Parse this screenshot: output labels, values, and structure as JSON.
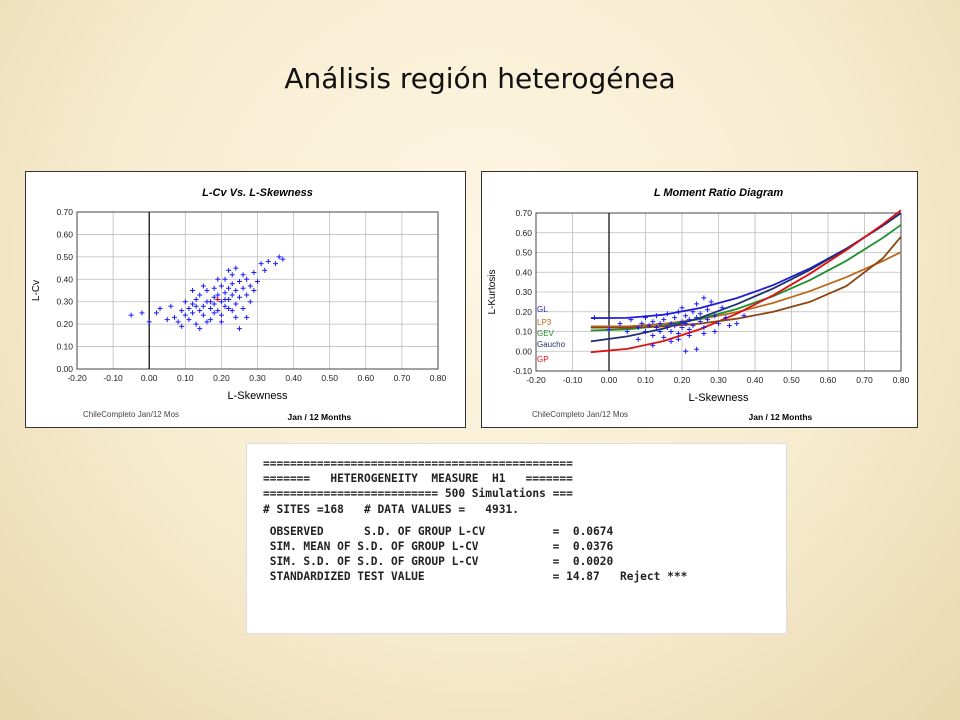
{
  "slide": {
    "title": "Análisis región heterogénea"
  },
  "chart_data": [
    {
      "type": "scatter",
      "title": "L-Cv Vs. L-Skewness",
      "xlabel": "L-Skewness",
      "ylabel": "L-Cv",
      "xlim": [
        -0.2,
        0.8
      ],
      "ylim": [
        0.0,
        0.7
      ],
      "x_ticks": [
        "-0.20",
        "-0.10",
        "0.00",
        "0.10",
        "0.20",
        "0.30",
        "0.40",
        "0.50",
        "0.60",
        "0.70",
        "0.80"
      ],
      "y_ticks": [
        "0.00",
        "0.10",
        "0.20",
        "0.30",
        "0.40",
        "0.50",
        "0.60",
        "0.70"
      ],
      "grid": true,
      "footer_left": "ChileCompleto Jan/12 Mos",
      "footer_right": "Jan / 12 Months",
      "marker_color": "#1a1aff",
      "regional_mean": {
        "x": 0.19,
        "y": 0.31,
        "color": "#e00000"
      },
      "points": [
        [
          -0.05,
          0.24
        ],
        [
          -0.02,
          0.25
        ],
        [
          0.0,
          0.21
        ],
        [
          0.02,
          0.25
        ],
        [
          0.03,
          0.27
        ],
        [
          0.05,
          0.22
        ],
        [
          0.06,
          0.28
        ],
        [
          0.07,
          0.23
        ],
        [
          0.08,
          0.21
        ],
        [
          0.09,
          0.26
        ],
        [
          0.1,
          0.24
        ],
        [
          0.1,
          0.3
        ],
        [
          0.11,
          0.27
        ],
        [
          0.11,
          0.22
        ],
        [
          0.12,
          0.25
        ],
        [
          0.12,
          0.29
        ],
        [
          0.13,
          0.31
        ],
        [
          0.13,
          0.2
        ],
        [
          0.14,
          0.26
        ],
        [
          0.14,
          0.33
        ],
        [
          0.15,
          0.28
        ],
        [
          0.15,
          0.24
        ],
        [
          0.16,
          0.3
        ],
        [
          0.16,
          0.35
        ],
        [
          0.17,
          0.27
        ],
        [
          0.17,
          0.22
        ],
        [
          0.18,
          0.32
        ],
        [
          0.18,
          0.29
        ],
        [
          0.18,
          0.36
        ],
        [
          0.19,
          0.26
        ],
        [
          0.19,
          0.33
        ],
        [
          0.2,
          0.3
        ],
        [
          0.2,
          0.37
        ],
        [
          0.2,
          0.24
        ],
        [
          0.21,
          0.34
        ],
        [
          0.21,
          0.28
        ],
        [
          0.21,
          0.4
        ],
        [
          0.22,
          0.31
        ],
        [
          0.22,
          0.36
        ],
        [
          0.22,
          0.27
        ],
        [
          0.23,
          0.38
        ],
        [
          0.23,
          0.33
        ],
        [
          0.23,
          0.42
        ],
        [
          0.24,
          0.29
        ],
        [
          0.24,
          0.35
        ],
        [
          0.24,
          0.45
        ],
        [
          0.25,
          0.32
        ],
        [
          0.25,
          0.39
        ],
        [
          0.25,
          0.18
        ],
        [
          0.26,
          0.36
        ],
        [
          0.26,
          0.42
        ],
        [
          0.27,
          0.33
        ],
        [
          0.27,
          0.4
        ],
        [
          0.28,
          0.37
        ],
        [
          0.28,
          0.3
        ],
        [
          0.29,
          0.43
        ],
        [
          0.3,
          0.39
        ],
        [
          0.31,
          0.47
        ],
        [
          0.32,
          0.44
        ],
        [
          0.33,
          0.48
        ],
        [
          0.35,
          0.47
        ],
        [
          0.36,
          0.5
        ],
        [
          0.37,
          0.49
        ],
        [
          0.27,
          0.23
        ],
        [
          0.09,
          0.19
        ],
        [
          0.16,
          0.21
        ],
        [
          0.2,
          0.21
        ],
        [
          0.24,
          0.23
        ],
        [
          0.14,
          0.18
        ],
        [
          0.18,
          0.25
        ],
        [
          0.12,
          0.35
        ],
        [
          0.19,
          0.4
        ],
        [
          0.22,
          0.44
        ],
        [
          0.15,
          0.37
        ],
        [
          0.26,
          0.27
        ],
        [
          0.29,
          0.35
        ],
        [
          0.23,
          0.26
        ],
        [
          0.17,
          0.3
        ],
        [
          0.21,
          0.31
        ],
        [
          0.13,
          0.28
        ]
      ]
    },
    {
      "type": "line",
      "title": "L Moment Ratio Diagram",
      "xlabel": "L-Skewness",
      "ylabel": "L-Kurtosis",
      "xlim": [
        -0.2,
        0.8
      ],
      "ylim": [
        -0.1,
        0.7
      ],
      "x_ticks": [
        "-0.20",
        "-0.10",
        "0.00",
        "0.10",
        "0.20",
        "0.30",
        "0.40",
        "0.50",
        "0.60",
        "0.70",
        "0.80"
      ],
      "y_ticks": [
        "-0.10",
        "0.00",
        "0.10",
        "0.20",
        "0.30",
        "0.40",
        "0.50",
        "0.60",
        "0.70"
      ],
      "grid": true,
      "footer_left": "ChileCompleto Jan/12 Mos",
      "footer_right": "Jan / 12 Months",
      "series": [
        {
          "name": "GL",
          "color": "#1f1fd0",
          "x": [
            -0.05,
            0.05,
            0.15,
            0.25,
            0.35,
            0.45,
            0.55,
            0.65,
            0.75,
            0.8
          ],
          "y": [
            0.168,
            0.169,
            0.185,
            0.219,
            0.269,
            0.335,
            0.419,
            0.519,
            0.636,
            0.7
          ]
        },
        {
          "name": "LP3",
          "color": "#b86a1c",
          "x": [
            -0.05,
            0.05,
            0.15,
            0.25,
            0.35,
            0.45,
            0.55,
            0.65,
            0.75,
            0.8
          ],
          "y": [
            0.126,
            0.126,
            0.139,
            0.163,
            0.198,
            0.245,
            0.304,
            0.375,
            0.457,
            0.502
          ]
        },
        {
          "name": "GEV",
          "color": "#1f8f2f",
          "x": [
            -0.05,
            0.05,
            0.15,
            0.25,
            0.35,
            0.45,
            0.55,
            0.65,
            0.75,
            0.8
          ],
          "y": [
            0.105,
            0.111,
            0.13,
            0.165,
            0.214,
            0.279,
            0.36,
            0.458,
            0.574,
            0.64
          ]
        },
        {
          "name": "Gaucho",
          "color": "#1f2f6f",
          "x": [
            -0.05,
            0.05,
            0.15,
            0.25,
            0.35,
            0.45,
            0.55,
            0.65,
            0.75,
            0.8
          ],
          "y": [
            0.05,
            0.075,
            0.115,
            0.17,
            0.238,
            0.318,
            0.412,
            0.518,
            0.636,
            0.7
          ]
        },
        {
          "name": "GP",
          "color": "#e01010",
          "x": [
            -0.05,
            0.05,
            0.15,
            0.25,
            0.35,
            0.45,
            0.55,
            0.65,
            0.75,
            0.8
          ],
          "y": [
            -0.005,
            0.012,
            0.052,
            0.112,
            0.19,
            0.284,
            0.392,
            0.512,
            0.643,
            0.714
          ]
        },
        {
          "name": "",
          "color": "#8b4513",
          "x": [
            -0.05,
            0.05,
            0.15,
            0.25,
            0.35,
            0.45,
            0.55,
            0.65,
            0.75,
            0.8
          ],
          "y": [
            0.12,
            0.12,
            0.126,
            0.14,
            0.165,
            0.2,
            0.25,
            0.33,
            0.47,
            0.58
          ]
        }
      ],
      "sites": [
        [
          -0.04,
          0.17
        ],
        [
          0.0,
          0.11
        ],
        [
          0.03,
          0.14
        ],
        [
          0.05,
          0.1
        ],
        [
          0.06,
          0.16
        ],
        [
          0.08,
          0.12
        ],
        [
          0.09,
          0.14
        ],
        [
          0.1,
          0.1
        ],
        [
          0.1,
          0.17
        ],
        [
          0.11,
          0.13
        ],
        [
          0.12,
          0.08
        ],
        [
          0.12,
          0.15
        ],
        [
          0.13,
          0.12
        ],
        [
          0.13,
          0.18
        ],
        [
          0.14,
          0.1
        ],
        [
          0.14,
          0.14
        ],
        [
          0.15,
          0.16
        ],
        [
          0.15,
          0.07
        ],
        [
          0.16,
          0.12
        ],
        [
          0.16,
          0.19
        ],
        [
          0.17,
          0.14
        ],
        [
          0.17,
          0.1
        ],
        [
          0.18,
          0.17
        ],
        [
          0.18,
          0.13
        ],
        [
          0.19,
          0.2
        ],
        [
          0.19,
          0.09
        ],
        [
          0.2,
          0.15
        ],
        [
          0.2,
          0.12
        ],
        [
          0.2,
          0.22
        ],
        [
          0.21,
          0.14
        ],
        [
          0.21,
          0.18
        ],
        [
          0.22,
          0.11
        ],
        [
          0.22,
          0.16
        ],
        [
          0.23,
          0.2
        ],
        [
          0.23,
          0.13
        ],
        [
          0.24,
          0.17
        ],
        [
          0.24,
          0.24
        ],
        [
          0.25,
          0.15
        ],
        [
          0.25,
          0.19
        ],
        [
          0.26,
          0.27
        ],
        [
          0.26,
          0.12
        ],
        [
          0.27,
          0.21
        ],
        [
          0.27,
          0.16
        ],
        [
          0.28,
          0.25
        ],
        [
          0.29,
          0.18
        ],
        [
          0.3,
          0.14
        ],
        [
          0.31,
          0.22
        ],
        [
          0.32,
          0.17
        ],
        [
          0.33,
          0.13
        ],
        [
          0.35,
          0.14
        ],
        [
          0.37,
          0.18
        ],
        [
          0.21,
          0.0
        ],
        [
          0.24,
          0.01
        ],
        [
          0.12,
          0.03
        ],
        [
          0.17,
          0.05
        ],
        [
          0.08,
          0.06
        ],
        [
          0.26,
          0.09
        ],
        [
          0.19,
          0.06
        ],
        [
          0.29,
          0.1
        ],
        [
          0.22,
          0.08
        ]
      ]
    }
  ],
  "console": {
    "line1": "==============================================",
    "line2": "=======   HETEROGENEITY  MEASURE  H1   =======",
    "line3": "========================== 500 Simulations ===",
    "line4": "# SITES =168   # DATA VALUES =   4931.",
    "line5": " OBSERVED      S.D. OF GROUP L-CV          =  0.0674",
    "line6": " SIM. MEAN OF S.D. OF GROUP L-CV           =  0.0376",
    "line7": " SIM. S.D. OF S.D. OF GROUP L-CV           =  0.0020",
    "line8": " STANDARDIZED TEST VALUE                   = 14.87   Reject ***"
  }
}
